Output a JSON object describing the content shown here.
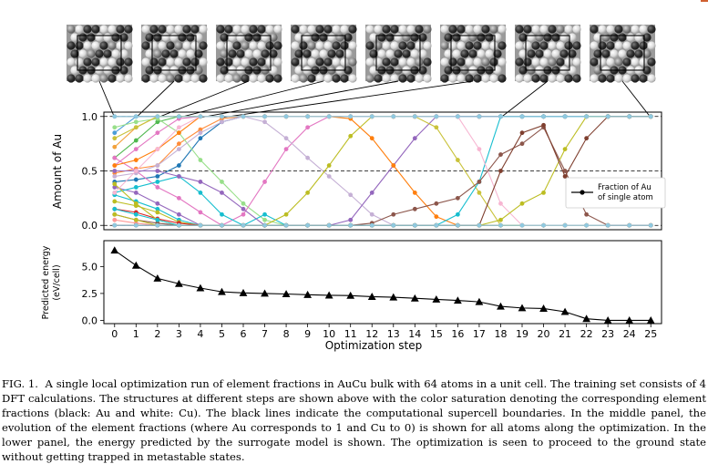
{
  "figure": {
    "structure_snapshots": {
      "count": 8,
      "linked_steps": [
        0,
        1,
        2,
        3,
        4,
        5,
        18,
        25
      ],
      "colors": {
        "gold_atom": "#2f2f2f",
        "copper_atom": "#f2f2f2",
        "boundary": "#000000"
      }
    },
    "middle_panel": {
      "chart_data": {
        "type": "line",
        "x": [
          0,
          1,
          2,
          3,
          4,
          5,
          6,
          7,
          8,
          9,
          10,
          11,
          12,
          13,
          14,
          15,
          16,
          17,
          18,
          19,
          20,
          21,
          22,
          23,
          24,
          25
        ],
        "xlim": [
          -0.5,
          25.5
        ],
        "ylim": [
          -0.04,
          1.04
        ],
        "ylabel": "Amount of Au",
        "yticks": [
          "0.0",
          "0.5",
          "1.0"
        ],
        "reference_lines": [
          0.0,
          0.5,
          1.0
        ],
        "legend": {
          "label": "Fraction of Au of single atom",
          "line1": "Fraction of Au",
          "line2": "of single atom",
          "placement": "right"
        },
        "series": [
          {
            "color": "#4c9ed8",
            "values": [
              0.85,
              1,
              1,
              1,
              1,
              1,
              1,
              1,
              1,
              1,
              1,
              1,
              1,
              1,
              1,
              1,
              1,
              1,
              1,
              1,
              1,
              1,
              1,
              1,
              1,
              1
            ]
          },
          {
            "color": "#7f7f7f",
            "values": [
              1,
              1,
              1,
              1,
              1,
              1,
              1,
              1,
              1,
              1,
              1,
              1,
              1,
              1,
              1,
              1,
              1,
              1,
              1,
              1,
              1,
              1,
              1,
              1,
              1,
              1
            ]
          },
          {
            "color": "#f2a23c",
            "values": [
              0.72,
              0.9,
              1,
              1,
              1,
              1,
              1,
              1,
              1,
              1,
              1,
              1,
              1,
              1,
              1,
              1,
              1,
              1,
              1,
              1,
              1,
              1,
              1,
              1,
              1,
              1
            ]
          },
          {
            "color": "#4fb84f",
            "values": [
              0.62,
              0.78,
              0.95,
              1,
              1,
              1,
              1,
              1,
              1,
              1,
              1,
              1,
              1,
              1,
              1,
              1,
              1,
              1,
              1,
              1,
              1,
              1,
              1,
              1,
              1,
              1
            ]
          },
          {
            "color": "#e377c2",
            "values": [
              0.55,
              0.7,
              0.85,
              0.98,
              1,
              1,
              1,
              1,
              1,
              1,
              1,
              1,
              1,
              1,
              1,
              1,
              1,
              1,
              1,
              1,
              1,
              1,
              1,
              1,
              1,
              1
            ]
          },
          {
            "color": "#ff8c3a",
            "values": [
              0.48,
              0.52,
              0.55,
              0.75,
              0.88,
              0.98,
              1,
              1,
              1,
              1,
              1,
              1,
              1,
              1,
              1,
              1,
              1,
              1,
              1,
              1,
              1,
              1,
              1,
              1,
              1,
              1
            ]
          },
          {
            "color": "#1f77b4",
            "values": [
              0.4,
              0.42,
              0.45,
              0.55,
              0.8,
              0.95,
              1,
              1,
              1,
              1,
              1,
              1,
              1,
              1,
              1,
              1,
              1,
              1,
              1,
              1,
              1,
              1,
              1,
              1,
              1,
              1
            ]
          },
          {
            "color": "#9467bd",
            "values": [
              0.35,
              0.3,
              0.2,
              0.1,
              0,
              0,
              0,
              0,
              0,
              0,
              0,
              0,
              0,
              0,
              0,
              0,
              0,
              0,
              0,
              0,
              0,
              0,
              0,
              0,
              0,
              0
            ]
          },
          {
            "color": "#17becf",
            "values": [
              0.28,
              0.22,
              0.15,
              0.05,
              0,
              0,
              0,
              0,
              0,
              0,
              0,
              0,
              0,
              0,
              0,
              0,
              0,
              0,
              0,
              0,
              0,
              0,
              0,
              0,
              0,
              0
            ]
          },
          {
            "color": "#bcbd22",
            "values": [
              0.22,
              0.18,
              0.12,
              0.03,
              0,
              0,
              0,
              0,
              0,
              0,
              0,
              0,
              0,
              0,
              0,
              0,
              0,
              0,
              0,
              0,
              0,
              0,
              0,
              0,
              0,
              0
            ]
          },
          {
            "color": "#d62728",
            "values": [
              0.15,
              0.12,
              0.06,
              0.02,
              0,
              0,
              0,
              0,
              0,
              0,
              0,
              0,
              0,
              0,
              0,
              0,
              0,
              0,
              0,
              0,
              0,
              0,
              0,
              0,
              0,
              0
            ]
          },
          {
            "color": "#8c564b",
            "values": [
              0.1,
              0.05,
              0.02,
              0,
              0,
              0,
              0,
              0,
              0,
              0,
              0,
              0,
              0,
              0,
              0,
              0,
              0,
              0,
              0,
              0,
              0,
              0,
              0,
              0,
              0,
              0
            ]
          },
          {
            "color": "#ff9896",
            "values": [
              0.05,
              0.02,
              0,
              0,
              0,
              0,
              0,
              0,
              0,
              0,
              0,
              0,
              0,
              0,
              0,
              0,
              0,
              0,
              0,
              0,
              0,
              0,
              0,
              0,
              0,
              0
            ]
          },
          {
            "color": "#98df8a",
            "values": [
              0.9,
              0.95,
              0.98,
              0.85,
              0.6,
              0.4,
              0.2,
              0.05,
              0,
              0,
              0,
              0,
              0,
              0,
              0,
              0,
              0,
              0,
              0,
              0,
              0,
              0,
              0,
              0,
              0,
              0
            ]
          },
          {
            "color": "#e377c2",
            "values": [
              0.62,
              0.5,
              0.35,
              0.25,
              0.12,
              0,
              0.1,
              0.4,
              0.7,
              0.9,
              1,
              1,
              1,
              1,
              1,
              1,
              1,
              1,
              1,
              1,
              1,
              1,
              1,
              1,
              1,
              1
            ]
          },
          {
            "color": "#c5b0d5",
            "values": [
              0.45,
              0.48,
              0.55,
              0.7,
              0.85,
              0.95,
              1,
              0.95,
              0.8,
              0.62,
              0.45,
              0.28,
              0.1,
              0,
              0,
              0,
              0,
              0,
              0,
              0,
              0,
              0,
              0,
              0,
              0,
              0
            ]
          },
          {
            "color": "#17becf",
            "values": [
              0.3,
              0.35,
              0.4,
              0.45,
              0.3,
              0.1,
              0,
              0.1,
              0,
              0,
              0,
              0,
              0,
              0,
              0,
              0,
              0,
              0,
              0,
              0,
              0,
              0,
              0,
              0,
              0,
              0
            ]
          },
          {
            "color": "#bcbd22",
            "values": [
              0.38,
              0.2,
              0.05,
              0,
              0,
              0,
              0,
              0,
              0.1,
              0.3,
              0.55,
              0.82,
              1,
              1,
              1,
              1,
              1,
              1,
              1,
              1,
              1,
              1,
              1,
              1,
              1,
              1
            ]
          },
          {
            "color": "#9467bd",
            "values": [
              0.5,
              0.5,
              0.5,
              0.45,
              0.4,
              0.3,
              0.15,
              0,
              0,
              0,
              0,
              0.05,
              0.3,
              0.55,
              0.8,
              1,
              1,
              1,
              1,
              1,
              1,
              1,
              1,
              1,
              1,
              1
            ]
          },
          {
            "color": "#ff7f0e",
            "values": [
              0.55,
              0.6,
              0.7,
              0.85,
              1,
              1,
              1,
              1,
              1,
              1,
              1,
              0.98,
              0.8,
              0.55,
              0.3,
              0.08,
              0,
              0,
              0,
              0,
              0,
              0,
              0,
              0,
              0,
              0
            ]
          },
          {
            "color": "#c9c23a",
            "values": [
              0.8,
              0.9,
              1,
              1,
              1,
              1,
              1,
              1,
              1,
              1,
              1,
              1,
              1,
              1,
              1,
              0.9,
              0.6,
              0.3,
              0,
              0,
              0,
              0,
              0,
              0,
              0,
              0
            ]
          },
          {
            "color": "#17becf",
            "values": [
              0.15,
              0.1,
              0.05,
              0,
              0,
              0,
              0,
              0,
              0,
              0,
              0,
              0,
              0,
              0,
              0,
              0,
              0.1,
              0.4,
              1,
              1,
              1,
              1,
              1,
              1,
              1,
              1
            ]
          },
          {
            "color": "#f7b6d2",
            "values": [
              0.3,
              0.5,
              0.7,
              0.9,
              1,
              1,
              1,
              1,
              1,
              1,
              1,
              1,
              1,
              1,
              1,
              1,
              1,
              0.7,
              0.2,
              0,
              0,
              0,
              0,
              0,
              0,
              0
            ]
          },
          {
            "color": "#8c564b",
            "values": [
              0,
              0,
              0,
              0,
              0,
              0,
              0,
              0,
              0,
              0,
              0,
              0,
              0.02,
              0.1,
              0.15,
              0.2,
              0.25,
              0.4,
              0.65,
              0.75,
              0.9,
              0.5,
              0.1,
              0,
              0,
              0
            ]
          },
          {
            "color": "#bcbd22",
            "values": [
              0.1,
              0.05,
              0,
              0,
              0,
              0,
              0,
              0,
              0,
              0,
              0,
              0,
              0,
              0,
              0,
              0,
              0,
              0,
              0.05,
              0.2,
              0.3,
              0.7,
              1,
              1,
              1,
              1
            ]
          },
          {
            "color": "#7f3f2f",
            "values": [
              0,
              0,
              0,
              0,
              0,
              0,
              0,
              0,
              0,
              0,
              0,
              0,
              0,
              0,
              0,
              0,
              0,
              0,
              0.5,
              0.85,
              0.92,
              0.45,
              0.8,
              1,
              1,
              1
            ]
          },
          {
            "color": "#8fc9e0",
            "values": [
              1,
              1,
              1,
              1,
              1,
              1,
              1,
              1,
              1,
              1,
              1,
              1,
              1,
              1,
              1,
              1,
              1,
              1,
              1,
              1,
              1,
              1,
              1,
              1,
              1,
              1
            ]
          },
          {
            "color": "#8fc9e0",
            "values": [
              0,
              0,
              0,
              0,
              0,
              0,
              0,
              0,
              0,
              0,
              0,
              0,
              0,
              0,
              0,
              0,
              0,
              0,
              0,
              0,
              0,
              0,
              0,
              0,
              0,
              0
            ]
          }
        ]
      }
    },
    "lower_panel": {
      "chart_data": {
        "type": "line",
        "x": [
          0,
          1,
          2,
          3,
          4,
          5,
          6,
          7,
          8,
          9,
          10,
          11,
          12,
          13,
          14,
          15,
          16,
          17,
          18,
          19,
          20,
          21,
          22,
          23,
          24,
          25
        ],
        "xlim": [
          -0.5,
          25.5
        ],
        "ylim": [
          -0.3,
          7.4
        ],
        "xlabel": "Optimization step",
        "ylabel_line1": "Predicted energy",
        "ylabel_line2": "(eV/cell)",
        "xticks": [
          "0",
          "1",
          "2",
          "3",
          "4",
          "5",
          "6",
          "7",
          "8",
          "9",
          "10",
          "11",
          "12",
          "13",
          "14",
          "15",
          "16",
          "17",
          "18",
          "19",
          "20",
          "21",
          "22",
          "23",
          "24",
          "25"
        ],
        "yticks": [
          "0.0",
          "2.5",
          "5.0"
        ],
        "series": [
          {
            "color": "#000000",
            "marker": "triangle",
            "values": [
              6.5,
              5.1,
              3.9,
              3.4,
              3.0,
              2.65,
              2.55,
              2.5,
              2.45,
              2.38,
              2.33,
              2.3,
              2.2,
              2.15,
              2.05,
              1.95,
              1.85,
              1.72,
              1.3,
              1.15,
              1.1,
              0.8,
              0.15,
              0.0,
              0.0,
              0.0
            ]
          }
        ]
      }
    }
  },
  "caption": {
    "lead": "FIG. 1.",
    "text": "A single local optimization run of element fractions in AuCu bulk with 64 atoms in a unit cell. The training set consists of 4 DFT calculations. The structures at different steps are shown above with the color saturation denoting the corresponding element fractions (black: Au and white: Cu). The black lines indicate the computational supercell boundaries. In the middle panel, the evolution of the element fractions (where Au corresponds to 1 and Cu to 0) is shown for all atoms along the optimization. In the lower panel, the energy predicted by the surrogate model is shown. The optimization is seen to proceed to the ground state without getting trapped in metastable states."
  }
}
